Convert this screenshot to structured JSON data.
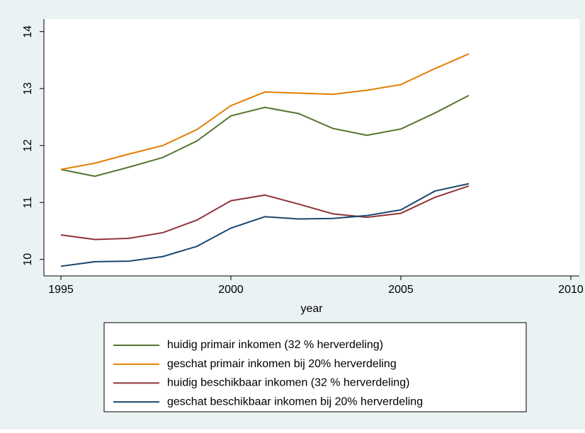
{
  "chart_data": {
    "type": "line",
    "x": [
      1995,
      1996,
      1997,
      1998,
      1999,
      2000,
      2001,
      2002,
      2003,
      2004,
      2005,
      2006,
      2007
    ],
    "series": [
      {
        "name": "huidig primair inkomen (32 % herverdeling)",
        "color": "#55752f",
        "values": [
          11.58,
          11.46,
          11.62,
          11.79,
          12.08,
          12.52,
          12.67,
          12.56,
          12.3,
          12.18,
          12.29,
          12.57,
          12.88
        ]
      },
      {
        "name": "geschat primair inkomen bij 20% herverdeling",
        "color": "#e37e00",
        "values": [
          11.58,
          11.69,
          11.85,
          12.0,
          12.28,
          12.7,
          12.94,
          12.92,
          12.9,
          12.97,
          13.07,
          13.35,
          13.61
        ]
      },
      {
        "name": "huidig beschikbaar inkomen (32 % herverdeling)",
        "color": "#90353b",
        "values": [
          10.43,
          10.35,
          10.37,
          10.47,
          10.69,
          11.03,
          11.13,
          10.97,
          10.8,
          10.74,
          10.81,
          11.09,
          11.29
        ]
      },
      {
        "name": "geschat beschikbaar inkomen bij 20% herverdeling",
        "color": "#1a476f",
        "values": [
          9.88,
          9.96,
          9.97,
          10.05,
          10.23,
          10.55,
          10.75,
          10.71,
          10.72,
          10.77,
          10.87,
          11.2,
          11.33
        ]
      }
    ],
    "x_label": "year",
    "xlim": [
      1994.5,
      2010.25
    ],
    "xticks": [
      1995,
      2000,
      2005,
      2010
    ],
    "ylim": [
      9.71,
      14.22
    ],
    "yticks": [
      10,
      11,
      12,
      13,
      14
    ],
    "legend": "bottom"
  }
}
